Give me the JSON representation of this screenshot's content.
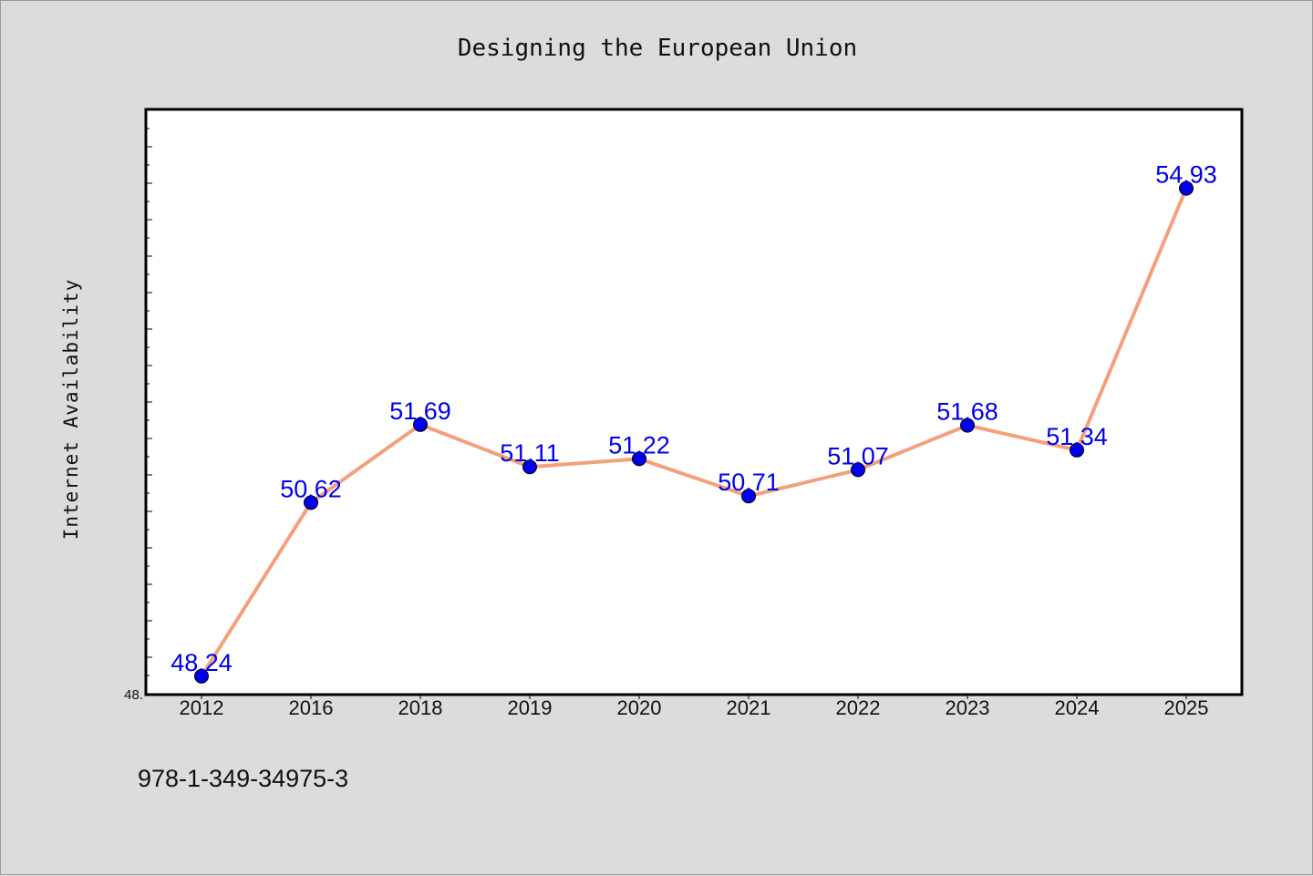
{
  "chart_data": {
    "type": "line",
    "title": "Designing the European Union",
    "ylabel": "Internet Availability",
    "xlabel": "",
    "categories": [
      "2012",
      "2016",
      "2018",
      "2019",
      "2020",
      "2021",
      "2022",
      "2023",
      "2024",
      "2025"
    ],
    "series": [
      {
        "values": [
          48.24,
          50.62,
          51.69,
          51.11,
          51.22,
          50.71,
          51.07,
          51.68,
          51.34,
          54.93
        ]
      }
    ],
    "data_labels": [
      "48.24",
      "50.62",
      "51.69",
      "51.11",
      "51.22",
      "50.71",
      "51.07",
      "51.68",
      "51.34",
      "54.93"
    ],
    "ylim": [
      48.0,
      56.0
    ],
    "y_tick_labels": [
      "48."
    ],
    "grid": false,
    "line_color": "#f4a07c",
    "marker_color": "#0000ee"
  },
  "footer_text": "978-1-349-34975-3"
}
